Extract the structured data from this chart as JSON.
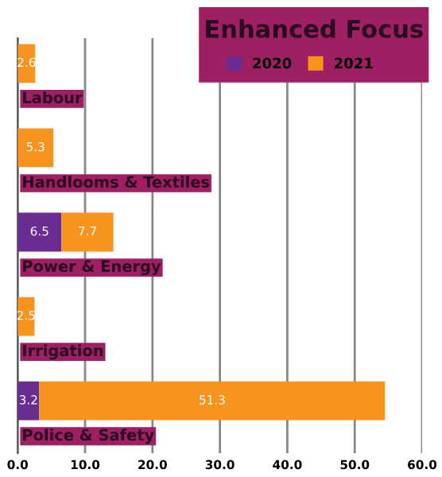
{
  "chart_data": {
    "type": "bar",
    "orientation": "horizontal",
    "stacked": true,
    "title": "Enhanced Focus",
    "categories": [
      "Labour",
      "Handlooms & Textiles",
      "Power & Energy",
      "Irrigation",
      "Police & Safety"
    ],
    "series": [
      {
        "name": "2020",
        "color": "#6a2c91",
        "values": [
          null,
          null,
          6.5,
          null,
          3.2
        ]
      },
      {
        "name": "2021",
        "color": "#f7941d",
        "values": [
          2.6,
          5.3,
          7.7,
          2.5,
          51.3
        ]
      }
    ],
    "xlim": [
      0,
      60
    ],
    "xticks": [
      {
        "value": 0,
        "label": "0.0"
      },
      {
        "value": 10,
        "label": "10.0"
      },
      {
        "value": 20,
        "label": "20.0"
      },
      {
        "value": 30,
        "label": "30.0"
      },
      {
        "value": 40,
        "label": "40.0"
      },
      {
        "value": 50,
        "label": "50.0"
      },
      {
        "value": 60,
        "label": "60.0"
      }
    ],
    "grid": "x",
    "legend": "top right",
    "data_labels": true
  }
}
